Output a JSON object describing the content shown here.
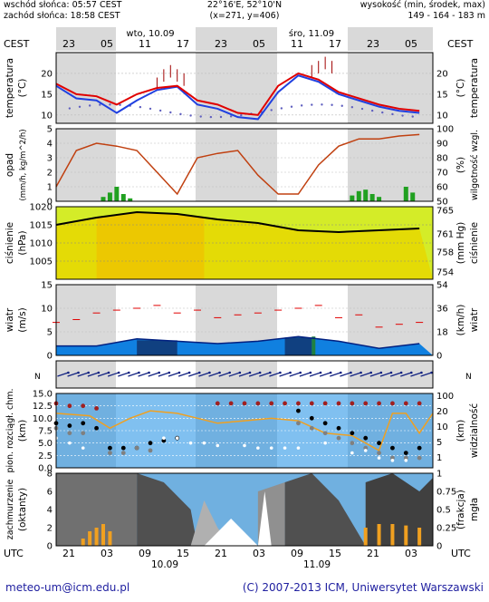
{
  "header": {
    "sunrise": "wschód słońca: 05:57 CEST",
    "sunset": "zachód słońca: 18:58 CEST",
    "coords": "22°16'E, 52°10'N",
    "grid": "(x=271, y=406)",
    "elevation_title": "wysokość (min, środek, max)",
    "elevation_values": "149 - 164 - 183 m"
  },
  "timeline": {
    "tz_label_left": "CEST",
    "tz_label_right": "CEST",
    "utc_label_left": "UTC",
    "utc_label_right": "UTC",
    "day1": "wto, 10.09",
    "day2": "śro, 11.09",
    "top_ticks": [
      "23",
      "05",
      "11",
      "17",
      "23",
      "05",
      "11",
      "17",
      "23",
      "05"
    ],
    "bottom_ticks": [
      "21",
      "03",
      "09",
      "15",
      "21",
      "03",
      "09",
      "15",
      "21",
      "03"
    ],
    "bottom_dates": [
      "10.09",
      "11.09"
    ]
  },
  "panels": {
    "temperature": {
      "label_left": "temperatura",
      "unit_left": "(°C)",
      "label_right": "temperatura",
      "unit_right": "(°C)"
    },
    "precip": {
      "label_left": "opad",
      "unit_left": "(mm/h, kg/m^2/h)",
      "label_right": "wilgotność wzgl.",
      "unit_right": "(%)"
    },
    "pressure": {
      "label_left": "ciśnienie",
      "unit_left": "(hPa)",
      "label_right": "ciśnienie",
      "unit_right": "(mm Hg)"
    },
    "wind": {
      "label_left": "wiatr",
      "unit_left": "(m/s)",
      "label_right": "wiatr",
      "unit_right": "(km/h)"
    },
    "visibility": {
      "label_left": "pion. rozciągł. chm.",
      "unit_left": "(km)",
      "label_right": "widzialność",
      "unit_right": "(km)"
    },
    "clouds": {
      "label_left": "zachmurzenie",
      "unit_left": "(oktanty)",
      "label_right": "mgła",
      "unit_right": "(frakcja)"
    }
  },
  "footer": {
    "email": "meteo-um@icm.edu.pl",
    "copyright": "(C) 2007-2013 ICM, Uniwersytet Warszawski"
  },
  "colors": {
    "night": "#d9d9d9",
    "day": "#ffffff",
    "temp": "#e00000",
    "dew": "#2040e0",
    "rh": "#c04010",
    "rain": "#20a020",
    "pressure_line": "#000000",
    "wind_max": "#e00000",
    "fog": "#f0a020"
  },
  "chart_data": [
    {
      "type": "line",
      "name": "temperature",
      "x_hours": [
        0,
        3,
        6,
        9,
        12,
        15,
        18,
        21,
        24,
        27,
        30,
        33,
        36,
        39,
        42,
        45,
        48,
        51,
        54
      ],
      "series": [
        {
          "values": [
            17.5,
            15,
            14.5,
            12.5,
            15,
            16.5,
            17,
            13.5,
            12.5,
            10.5,
            10,
            17,
            20,
            18.5,
            15.5,
            14,
            12.5,
            11.5,
            11
          ]
        },
        {
          "values": [
            17,
            14,
            13.5,
            10.5,
            13.5,
            16,
            16.8,
            12.5,
            11.5,
            9.5,
            9,
            15.5,
            19.5,
            18,
            15,
            13.5,
            12,
            11,
            10.5
          ]
        }
      ],
      "ylim": [
        8,
        25
      ],
      "yticks": [
        10,
        15,
        20
      ],
      "yticks_right": [
        10,
        15,
        20
      ]
    },
    {
      "type": "line",
      "name": "precipitation_humidity",
      "x_hours": [
        0,
        3,
        6,
        9,
        12,
        15,
        18,
        21,
        24,
        27,
        30,
        33,
        36,
        39,
        42,
        45,
        48,
        51,
        54
      ],
      "series": [
        {
          "values": [
            60,
            85,
            90,
            88,
            85,
            70,
            55,
            80,
            83,
            85,
            68,
            55,
            55,
            75,
            88,
            93,
            93,
            95,
            96
          ]
        }
      ],
      "ylim_left": [
        0,
        5
      ],
      "yticks_left": [
        0,
        1,
        2,
        3,
        4,
        5
      ],
      "ylim_right": [
        50,
        100
      ],
      "yticks_right": [
        50,
        60,
        70,
        80,
        90,
        100
      ]
    },
    {
      "type": "area",
      "name": "pressure",
      "x_hours": [
        0,
        6,
        12,
        18,
        24,
        30,
        36,
        42,
        48,
        54
      ],
      "series": [
        {
          "values": [
            1015,
            1017,
            1018.5,
            1018,
            1016.5,
            1015.5,
            1013.5,
            1013,
            1013.5,
            1014
          ]
        }
      ],
      "ylim": [
        1000,
        1020
      ],
      "yticks": [
        1005,
        1010,
        1015,
        1020
      ],
      "yticks_right": [
        754,
        758,
        761,
        765
      ]
    },
    {
      "type": "area",
      "name": "wind",
      "x_hours": [
        0,
        6,
        12,
        18,
        24,
        30,
        36,
        42,
        48,
        54
      ],
      "series": [
        {
          "values": [
            2,
            2,
            3.5,
            3,
            2.5,
            3,
            4,
            3,
            1.5,
            2.5
          ]
        },
        {
          "values": [
            7,
            9,
            10,
            9,
            8,
            9,
            10,
            8,
            6,
            7
          ]
        }
      ],
      "ylim": [
        0,
        15
      ],
      "yticks": [
        0,
        5,
        10,
        15
      ],
      "yticks_right": [
        0,
        18,
        36,
        54
      ]
    },
    {
      "type": "scatter",
      "name": "visibility_cloudbase",
      "ylim": [
        0,
        15
      ],
      "yticks": [
        0,
        2.5,
        5.0,
        7.5,
        10.0,
        12.5,
        15.0
      ],
      "yticks_right": [
        1,
        5,
        10,
        20,
        100
      ]
    },
    {
      "type": "area",
      "name": "cloud_cover",
      "ylim": [
        0,
        8
      ],
      "yticks": [
        0,
        2,
        4,
        6,
        8
      ],
      "yticks_right": [
        0,
        0.25,
        0.5,
        0.75,
        1
      ]
    }
  ]
}
